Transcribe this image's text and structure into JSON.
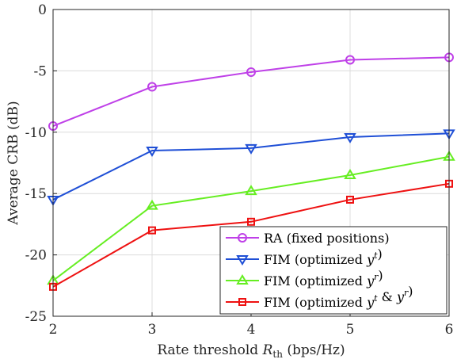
{
  "chart_data": {
    "type": "line",
    "xlabel": "Rate threshold R_th (bps/Hz)",
    "ylabel": "Average CRB (dB)",
    "x": [
      2,
      3,
      4,
      5,
      6
    ],
    "xlim": [
      2,
      6
    ],
    "ylim": [
      -25,
      0
    ],
    "xticks": [
      "2",
      "3",
      "4",
      "5",
      "6"
    ],
    "yticks": [
      "0",
      "-5",
      "-10",
      "-15",
      "-20",
      "-25"
    ],
    "grid": true,
    "legend_position": "bottom-right",
    "series": [
      {
        "name": "RA (fixed positions)",
        "color": "#bf40e8",
        "marker": "circle",
        "values": [
          -9.5,
          -6.3,
          -5.1,
          -4.1,
          -3.9
        ]
      },
      {
        "name": "FIM (optimized y^t)",
        "color": "#1f4fd6",
        "marker": "triangle-down",
        "values": [
          -15.5,
          -11.5,
          -11.3,
          -10.4,
          -10.1
        ]
      },
      {
        "name": "FIM (optimized y^r)",
        "color": "#66ee22",
        "marker": "triangle-up",
        "values": [
          -22.1,
          -16.0,
          -14.8,
          -13.5,
          -12.0
        ]
      },
      {
        "name": "FIM (optimized y^t & y^r)",
        "color": "#ee1111",
        "marker": "square",
        "values": [
          -22.6,
          -18.0,
          -17.3,
          -15.5,
          -14.2
        ]
      }
    ]
  }
}
